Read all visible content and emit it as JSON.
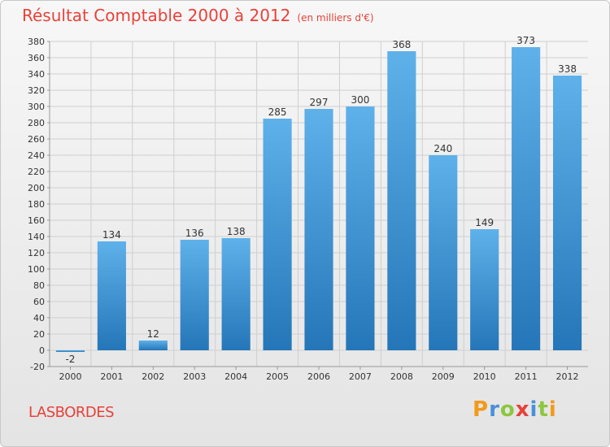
{
  "header": {
    "title": "Résultat Comptable 2000 à 2012",
    "subtitle": "(en milliers d'€)"
  },
  "footer": {
    "town": "LASBORDES",
    "brand": "Proxiti"
  },
  "colors": {
    "title": "#e8413a",
    "bar_top": "#5fb1ea",
    "bar_bottom": "#2476b8",
    "grid": "#cfcfcf",
    "brand_letters": [
      "#f29a1a",
      "#4a90d9",
      "#8dc63f",
      "#e8413a",
      "#4a90d9",
      "#8dc63f",
      "#f29a1a"
    ]
  },
  "chart_data": {
    "type": "bar",
    "title": "Résultat Comptable 2000 à 2012",
    "subtitle": "(en milliers d'€)",
    "xlabel": "",
    "ylabel": "",
    "categories": [
      "2000",
      "2001",
      "2002",
      "2003",
      "2004",
      "2005",
      "2006",
      "2007",
      "2008",
      "2009",
      "2010",
      "2011",
      "2012"
    ],
    "values": [
      -2,
      134,
      12,
      136,
      138,
      285,
      297,
      300,
      368,
      240,
      149,
      373,
      338
    ],
    "ylim": [
      -20,
      380
    ],
    "yticks": [
      -20,
      0,
      20,
      40,
      60,
      80,
      100,
      120,
      140,
      160,
      180,
      200,
      220,
      240,
      260,
      280,
      300,
      320,
      340,
      360,
      380
    ],
    "grid": true,
    "legend": "none"
  }
}
